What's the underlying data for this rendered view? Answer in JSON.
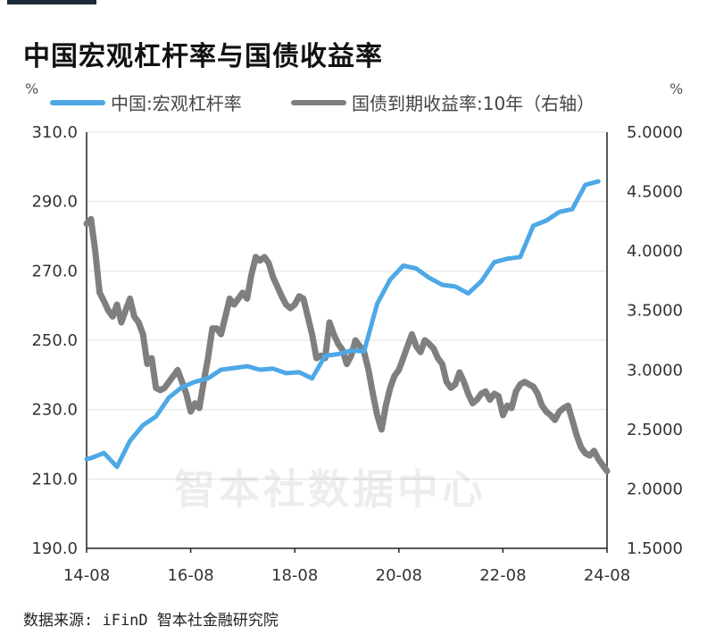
{
  "title": "中国宏观杠杆率与国债收益率",
  "source": "数据来源: iFinD 智本社金融研究院",
  "watermark": "智本社数据中心",
  "chart_data": {
    "type": "line",
    "title": "中国宏观杠杆率与国债收益率",
    "y_left": {
      "unit": "%",
      "lim": [
        190,
        310
      ],
      "ticks": [
        "190.0",
        "210.0",
        "230.0",
        "250.0",
        "270.0",
        "290.0",
        "310.0"
      ]
    },
    "y_right": {
      "unit": "%",
      "lim": [
        1.5,
        5.0
      ],
      "ticks": [
        "1.5000",
        "2.0000",
        "2.5000",
        "3.0000",
        "3.5000",
        "4.0000",
        "4.5000",
        "5.0000"
      ]
    },
    "x_ticks": [
      "14-08",
      "16-08",
      "18-08",
      "20-08",
      "22-08",
      "24-08"
    ],
    "x_range": [
      "2014-08",
      "2024-08"
    ],
    "grid": "horizontal",
    "legend_position": "top",
    "series": [
      {
        "name": "中国:宏观杠杆率",
        "axis": "left",
        "color": "#4ea8e6",
        "points": [
          [
            "2014-08",
            215.8
          ],
          [
            "2014-09",
            216.0
          ],
          [
            "2014-12",
            217.5
          ],
          [
            "2015-03",
            213.5
          ],
          [
            "2015-06",
            221.0
          ],
          [
            "2015-09",
            225.5
          ],
          [
            "2015-12",
            228.0
          ],
          [
            "2016-03",
            233.5
          ],
          [
            "2016-06",
            236.5
          ],
          [
            "2016-09",
            238.0
          ],
          [
            "2016-12",
            239.0
          ],
          [
            "2017-03",
            241.5
          ],
          [
            "2017-06",
            242.0
          ],
          [
            "2017-09",
            242.5
          ],
          [
            "2017-12",
            241.5
          ],
          [
            "2018-03",
            241.8
          ],
          [
            "2018-06",
            240.5
          ],
          [
            "2018-09",
            240.8
          ],
          [
            "2018-12",
            239.0
          ],
          [
            "2019-03",
            245.5
          ],
          [
            "2019-06",
            246.0
          ],
          [
            "2019-09",
            247.0
          ],
          [
            "2019-12",
            246.8
          ],
          [
            "2020-03",
            260.5
          ],
          [
            "2020-06",
            267.5
          ],
          [
            "2020-09",
            271.5
          ],
          [
            "2020-12",
            270.7
          ],
          [
            "2021-03",
            268.0
          ],
          [
            "2021-06",
            266.0
          ],
          [
            "2021-09",
            265.5
          ],
          [
            "2021-12",
            263.5
          ],
          [
            "2022-03",
            267.0
          ],
          [
            "2022-06",
            272.5
          ],
          [
            "2022-09",
            273.5
          ],
          [
            "2022-12",
            274.0
          ],
          [
            "2023-03",
            283.0
          ],
          [
            "2023-06",
            284.5
          ],
          [
            "2023-09",
            287.0
          ],
          [
            "2023-12",
            287.8
          ],
          [
            "2024-03",
            294.8
          ],
          [
            "2024-06",
            295.8
          ]
        ]
      },
      {
        "name": "国债到期收益率:10年（右轴）",
        "axis": "right",
        "color": "#7f7f7f",
        "points": [
          [
            "2014-08",
            4.23
          ],
          [
            "2014-09",
            4.27
          ],
          [
            "2014-10",
            4.0
          ],
          [
            "2014-11",
            3.65
          ],
          [
            "2014-12",
            3.58
          ],
          [
            "2015-01",
            3.5
          ],
          [
            "2015-02",
            3.45
          ],
          [
            "2015-03",
            3.55
          ],
          [
            "2015-04",
            3.4
          ],
          [
            "2015-05",
            3.5
          ],
          [
            "2015-06",
            3.6
          ],
          [
            "2015-07",
            3.45
          ],
          [
            "2015-08",
            3.4
          ],
          [
            "2015-09",
            3.3
          ],
          [
            "2015-10",
            3.05
          ],
          [
            "2015-11",
            3.1
          ],
          [
            "2015-12",
            2.85
          ],
          [
            "2016-01",
            2.83
          ],
          [
            "2016-02",
            2.85
          ],
          [
            "2016-03",
            2.9
          ],
          [
            "2016-04",
            2.95
          ],
          [
            "2016-05",
            3.0
          ],
          [
            "2016-06",
            2.9
          ],
          [
            "2016-07",
            2.8
          ],
          [
            "2016-08",
            2.65
          ],
          [
            "2016-09",
            2.72
          ],
          [
            "2016-10",
            2.68
          ],
          [
            "2016-11",
            2.9
          ],
          [
            "2016-12",
            3.1
          ],
          [
            "2017-01",
            3.35
          ],
          [
            "2017-02",
            3.35
          ],
          [
            "2017-03",
            3.3
          ],
          [
            "2017-04",
            3.45
          ],
          [
            "2017-05",
            3.6
          ],
          [
            "2017-06",
            3.55
          ],
          [
            "2017-07",
            3.6
          ],
          [
            "2017-08",
            3.65
          ],
          [
            "2017-09",
            3.6
          ],
          [
            "2017-10",
            3.8
          ],
          [
            "2017-11",
            3.95
          ],
          [
            "2017-12",
            3.92
          ],
          [
            "2018-01",
            3.95
          ],
          [
            "2018-02",
            3.9
          ],
          [
            "2018-03",
            3.78
          ],
          [
            "2018-04",
            3.7
          ],
          [
            "2018-05",
            3.62
          ],
          [
            "2018-06",
            3.55
          ],
          [
            "2018-07",
            3.52
          ],
          [
            "2018-08",
            3.55
          ],
          [
            "2018-09",
            3.62
          ],
          [
            "2018-10",
            3.6
          ],
          [
            "2018-11",
            3.45
          ],
          [
            "2018-12",
            3.3
          ],
          [
            "2019-01",
            3.1
          ],
          [
            "2019-02",
            3.12
          ],
          [
            "2019-03",
            3.1
          ],
          [
            "2019-04",
            3.4
          ],
          [
            "2019-05",
            3.3
          ],
          [
            "2019-06",
            3.22
          ],
          [
            "2019-07",
            3.17
          ],
          [
            "2019-08",
            3.05
          ],
          [
            "2019-09",
            3.12
          ],
          [
            "2019-10",
            3.25
          ],
          [
            "2019-11",
            3.2
          ],
          [
            "2019-12",
            3.15
          ],
          [
            "2020-01",
            3.0
          ],
          [
            "2020-02",
            2.8
          ],
          [
            "2020-03",
            2.62
          ],
          [
            "2020-04",
            2.5
          ],
          [
            "2020-05",
            2.7
          ],
          [
            "2020-06",
            2.85
          ],
          [
            "2020-07",
            2.95
          ],
          [
            "2020-08",
            3.0
          ],
          [
            "2020-09",
            3.1
          ],
          [
            "2020-10",
            3.2
          ],
          [
            "2020-11",
            3.3
          ],
          [
            "2020-12",
            3.2
          ],
          [
            "2021-01",
            3.15
          ],
          [
            "2021-02",
            3.25
          ],
          [
            "2021-03",
            3.22
          ],
          [
            "2021-04",
            3.18
          ],
          [
            "2021-05",
            3.1
          ],
          [
            "2021-06",
            3.05
          ],
          [
            "2021-07",
            2.9
          ],
          [
            "2021-08",
            2.85
          ],
          [
            "2021-09",
            2.88
          ],
          [
            "2021-10",
            2.98
          ],
          [
            "2021-11",
            2.9
          ],
          [
            "2021-12",
            2.8
          ],
          [
            "2022-01",
            2.72
          ],
          [
            "2022-02",
            2.75
          ],
          [
            "2022-03",
            2.8
          ],
          [
            "2022-04",
            2.82
          ],
          [
            "2022-05",
            2.75
          ],
          [
            "2022-06",
            2.8
          ],
          [
            "2022-07",
            2.78
          ],
          [
            "2022-08",
            2.62
          ],
          [
            "2022-09",
            2.7
          ],
          [
            "2022-10",
            2.68
          ],
          [
            "2022-11",
            2.82
          ],
          [
            "2022-12",
            2.88
          ],
          [
            "2023-01",
            2.9
          ],
          [
            "2023-02",
            2.88
          ],
          [
            "2023-03",
            2.86
          ],
          [
            "2023-04",
            2.8
          ],
          [
            "2023-05",
            2.7
          ],
          [
            "2023-06",
            2.65
          ],
          [
            "2023-07",
            2.62
          ],
          [
            "2023-08",
            2.58
          ],
          [
            "2023-09",
            2.65
          ],
          [
            "2023-10",
            2.68
          ],
          [
            "2023-11",
            2.7
          ],
          [
            "2023-12",
            2.58
          ],
          [
            "2024-01",
            2.45
          ],
          [
            "2024-02",
            2.35
          ],
          [
            "2024-03",
            2.3
          ],
          [
            "2024-04",
            2.28
          ],
          [
            "2024-05",
            2.32
          ],
          [
            "2024-06",
            2.25
          ],
          [
            "2024-07",
            2.2
          ],
          [
            "2024-08",
            2.15
          ]
        ]
      }
    ]
  }
}
